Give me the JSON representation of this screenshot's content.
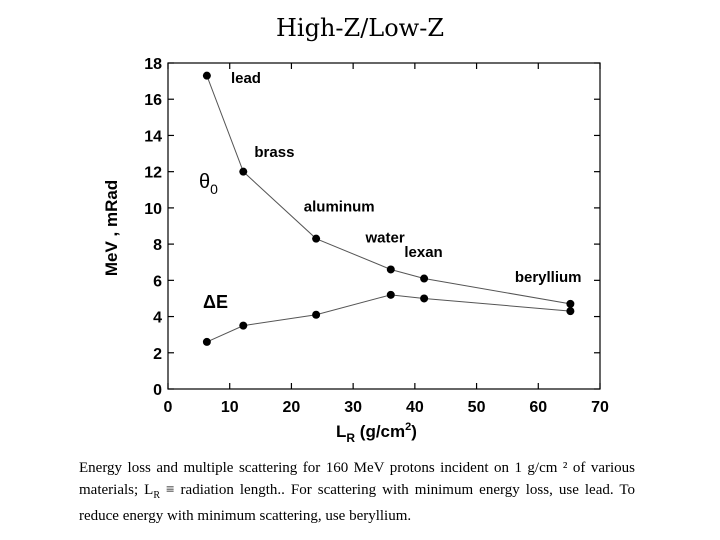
{
  "slide": {
    "title": "High-Z/Low-Z",
    "caption": {
      "part1": "Energy loss and multiple scattering for 160 MeV protons incident on 1 g/cm ² of various materials;  L",
      "sub": "R",
      "part2": " ≡ radiation length.. For scattering with minimum energy loss, use lead. To reduce energy with minimum scattering, use beryllium."
    }
  },
  "chart_data": {
    "type": "line",
    "xlabel": "L",
    "xlabel_sub": "R",
    "xlabel_units": "(g/cm",
    "xlabel_sup": "2",
    "xlabel_close": ")",
    "ylabel": "MeV , mRad",
    "xlim": [
      0,
      70
    ],
    "ylim": [
      0,
      18
    ],
    "xticks": [
      0,
      10,
      20,
      30,
      40,
      50,
      60,
      70
    ],
    "yticks": [
      0,
      2,
      4,
      6,
      8,
      10,
      12,
      14,
      16,
      18
    ],
    "grid": false,
    "series": [
      {
        "name": "θ0",
        "x": [
          6.3,
          12.2,
          24.0,
          36.1,
          41.5,
          65.2
        ],
        "y": [
          17.3,
          12.0,
          8.3,
          6.6,
          6.1,
          4.7
        ]
      },
      {
        "name": "ΔE",
        "x": [
          6.3,
          12.2,
          24.0,
          36.1,
          41.5,
          65.2
        ],
        "y": [
          2.6,
          3.5,
          4.1,
          5.2,
          5.0,
          4.3
        ]
      }
    ],
    "annotations": [
      {
        "text": "lead",
        "x": 10.2,
        "y": 16.9
      },
      {
        "text": "brass",
        "x": 14.0,
        "y": 12.8
      },
      {
        "text": "aluminum",
        "x": 22.0,
        "y": 9.8
      },
      {
        "text": "water",
        "x": 32.0,
        "y": 8.1
      },
      {
        "text": "lexan",
        "x": 38.3,
        "y": 7.3
      },
      {
        "text": "beryllium",
        "x": 56.2,
        "y": 5.9
      }
    ]
  }
}
